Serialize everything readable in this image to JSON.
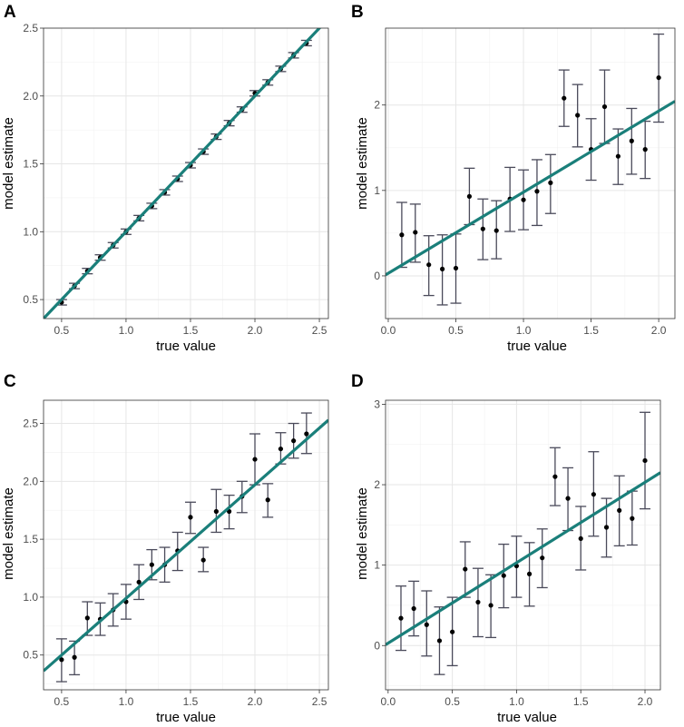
{
  "colors": {
    "fit_line": "#1a7f7a",
    "error_bar": "#4a4a5a",
    "point": "#000000"
  },
  "chart_data": [
    {
      "type": "scatter",
      "panel": "A",
      "xlabel": "true value",
      "ylabel": "model estimate",
      "xlim": [
        0.36,
        2.57
      ],
      "ylim": [
        0.36,
        2.5
      ],
      "xticks": [
        0.5,
        1.0,
        1.5,
        2.0,
        2.5
      ],
      "xtick_labels": [
        "0.5",
        "1.0",
        "1.5",
        "2.0",
        "2.5"
      ],
      "yticks": [
        0.5,
        1.0,
        1.5,
        2.0,
        2.5
      ],
      "ytick_labels": [
        "0.5",
        "1.0",
        "1.5",
        "2.0",
        "2.5"
      ],
      "fit_line": {
        "intercept": 0.0,
        "slope": 1.0
      },
      "points": [
        {
          "x": 0.5,
          "y": 0.48,
          "lo": 0.46,
          "hi": 0.5
        },
        {
          "x": 0.6,
          "y": 0.6,
          "lo": 0.58,
          "hi": 0.62
        },
        {
          "x": 0.7,
          "y": 0.71,
          "lo": 0.69,
          "hi": 0.73
        },
        {
          "x": 0.8,
          "y": 0.81,
          "lo": 0.79,
          "hi": 0.83
        },
        {
          "x": 0.9,
          "y": 0.9,
          "lo": 0.88,
          "hi": 0.92
        },
        {
          "x": 1.0,
          "y": 1.0,
          "lo": 0.98,
          "hi": 1.02
        },
        {
          "x": 1.1,
          "y": 1.1,
          "lo": 1.08,
          "hi": 1.12
        },
        {
          "x": 1.2,
          "y": 1.19,
          "lo": 1.17,
          "hi": 1.21
        },
        {
          "x": 1.3,
          "y": 1.29,
          "lo": 1.27,
          "hi": 1.31
        },
        {
          "x": 1.4,
          "y": 1.39,
          "lo": 1.37,
          "hi": 1.41
        },
        {
          "x": 1.5,
          "y": 1.49,
          "lo": 1.47,
          "hi": 1.51
        },
        {
          "x": 1.6,
          "y": 1.59,
          "lo": 1.57,
          "hi": 1.61
        },
        {
          "x": 1.7,
          "y": 1.7,
          "lo": 1.68,
          "hi": 1.72
        },
        {
          "x": 1.8,
          "y": 1.8,
          "lo": 1.78,
          "hi": 1.82
        },
        {
          "x": 1.9,
          "y": 1.9,
          "lo": 1.88,
          "hi": 1.92
        },
        {
          "x": 2.0,
          "y": 2.02,
          "lo": 2.0,
          "hi": 2.04
        },
        {
          "x": 2.1,
          "y": 2.1,
          "lo": 2.08,
          "hi": 2.12
        },
        {
          "x": 2.2,
          "y": 2.2,
          "lo": 2.18,
          "hi": 2.22
        },
        {
          "x": 2.3,
          "y": 2.3,
          "lo": 2.28,
          "hi": 2.32
        },
        {
          "x": 2.4,
          "y": 2.39,
          "lo": 2.37,
          "hi": 2.41
        }
      ]
    },
    {
      "type": "scatter",
      "panel": "B",
      "xlabel": "true value",
      "ylabel": "model estimate",
      "xlim": [
        -0.02,
        2.12
      ],
      "ylim": [
        -0.5,
        2.9
      ],
      "xticks": [
        0.0,
        0.5,
        1.0,
        1.5,
        2.0
      ],
      "xtick_labels": [
        "0.0",
        "0.5",
        "1.0",
        "1.5",
        "2.0"
      ],
      "yticks": [
        0,
        1,
        2
      ],
      "ytick_labels": [
        "0",
        "1",
        "2"
      ],
      "fit_line": {
        "intercept": 0.03,
        "slope": 0.95
      },
      "points": [
        {
          "x": 0.1,
          "y": 0.48,
          "lo": 0.1,
          "hi": 0.86
        },
        {
          "x": 0.2,
          "y": 0.51,
          "lo": 0.16,
          "hi": 0.84
        },
        {
          "x": 0.3,
          "y": 0.13,
          "lo": -0.23,
          "hi": 0.47
        },
        {
          "x": 0.4,
          "y": 0.08,
          "lo": -0.34,
          "hi": 0.48
        },
        {
          "x": 0.5,
          "y": 0.09,
          "lo": -0.32,
          "hi": 0.49
        },
        {
          "x": 0.6,
          "y": 0.93,
          "lo": 0.6,
          "hi": 1.26
        },
        {
          "x": 0.7,
          "y": 0.55,
          "lo": 0.19,
          "hi": 0.9
        },
        {
          "x": 0.8,
          "y": 0.53,
          "lo": 0.2,
          "hi": 0.88
        },
        {
          "x": 0.9,
          "y": 0.9,
          "lo": 0.52,
          "hi": 1.27
        },
        {
          "x": 1.0,
          "y": 0.89,
          "lo": 0.54,
          "hi": 1.24
        },
        {
          "x": 1.1,
          "y": 0.99,
          "lo": 0.59,
          "hi": 1.36
        },
        {
          "x": 1.2,
          "y": 1.09,
          "lo": 0.73,
          "hi": 1.42
        },
        {
          "x": 1.3,
          "y": 2.08,
          "lo": 1.75,
          "hi": 2.41
        },
        {
          "x": 1.4,
          "y": 1.88,
          "lo": 1.51,
          "hi": 2.24
        },
        {
          "x": 1.5,
          "y": 1.48,
          "lo": 1.12,
          "hi": 1.84
        },
        {
          "x": 1.6,
          "y": 1.98,
          "lo": 1.55,
          "hi": 2.41
        },
        {
          "x": 1.7,
          "y": 1.4,
          "lo": 1.07,
          "hi": 1.72
        },
        {
          "x": 1.8,
          "y": 1.58,
          "lo": 1.19,
          "hi": 1.96
        },
        {
          "x": 1.9,
          "y": 1.48,
          "lo": 1.14,
          "hi": 1.81
        },
        {
          "x": 2.0,
          "y": 2.32,
          "lo": 1.8,
          "hi": 2.83
        }
      ]
    },
    {
      "type": "scatter",
      "panel": "C",
      "xlabel": "true value",
      "ylabel": "model estimate",
      "xlim": [
        0.36,
        2.57
      ],
      "ylim": [
        0.2,
        2.7
      ],
      "xticks": [
        0.5,
        1.0,
        1.5,
        2.0,
        2.5
      ],
      "xtick_labels": [
        "0.5",
        "1.0",
        "1.5",
        "2.0",
        "2.5"
      ],
      "yticks": [
        0.5,
        1.0,
        1.5,
        2.0,
        2.5
      ],
      "ytick_labels": [
        "0.5",
        "1.0",
        "1.5",
        "2.0",
        "2.5"
      ],
      "fit_line": {
        "intercept": 0.01,
        "slope": 0.98
      },
      "points": [
        {
          "x": 0.5,
          "y": 0.46,
          "lo": 0.27,
          "hi": 0.64
        },
        {
          "x": 0.6,
          "y": 0.48,
          "lo": 0.33,
          "hi": 0.62
        },
        {
          "x": 0.7,
          "y": 0.82,
          "lo": 0.67,
          "hi": 0.96
        },
        {
          "x": 0.8,
          "y": 0.81,
          "lo": 0.67,
          "hi": 0.95
        },
        {
          "x": 0.9,
          "y": 0.89,
          "lo": 0.75,
          "hi": 1.03
        },
        {
          "x": 1.0,
          "y": 0.96,
          "lo": 0.81,
          "hi": 1.11
        },
        {
          "x": 1.1,
          "y": 1.13,
          "lo": 0.98,
          "hi": 1.28
        },
        {
          "x": 1.2,
          "y": 1.28,
          "lo": 1.15,
          "hi": 1.41
        },
        {
          "x": 1.3,
          "y": 1.28,
          "lo": 1.13,
          "hi": 1.43
        },
        {
          "x": 1.4,
          "y": 1.4,
          "lo": 1.23,
          "hi": 1.56
        },
        {
          "x": 1.5,
          "y": 1.69,
          "lo": 1.55,
          "hi": 1.82
        },
        {
          "x": 1.6,
          "y": 1.32,
          "lo": 1.22,
          "hi": 1.43
        },
        {
          "x": 1.7,
          "y": 1.74,
          "lo": 1.56,
          "hi": 1.93
        },
        {
          "x": 1.8,
          "y": 1.74,
          "lo": 1.59,
          "hi": 1.88
        },
        {
          "x": 1.9,
          "y": 1.87,
          "lo": 1.73,
          "hi": 2.0
        },
        {
          "x": 2.0,
          "y": 2.19,
          "lo": 1.97,
          "hi": 2.41
        },
        {
          "x": 2.1,
          "y": 1.84,
          "lo": 1.69,
          "hi": 1.98
        },
        {
          "x": 2.2,
          "y": 2.28,
          "lo": 2.15,
          "hi": 2.42
        },
        {
          "x": 2.3,
          "y": 2.35,
          "lo": 2.2,
          "hi": 2.5
        },
        {
          "x": 2.4,
          "y": 2.41,
          "lo": 2.24,
          "hi": 2.59
        }
      ]
    },
    {
      "type": "scatter",
      "panel": "D",
      "xlabel": "true value",
      "ylabel": "model estimate",
      "xlim": [
        -0.02,
        2.12
      ],
      "ylim": [
        -0.55,
        3.05
      ],
      "xticks": [
        0.0,
        0.5,
        1.0,
        1.5,
        2.0
      ],
      "xtick_labels": [
        "0.0",
        "0.5",
        "1.0",
        "1.5",
        "2.0"
      ],
      "yticks": [
        0,
        1,
        2,
        3
      ],
      "ytick_labels": [
        "0",
        "1",
        "2",
        "3"
      ],
      "fit_line": {
        "intercept": 0.03,
        "slope": 1.0
      },
      "points": [
        {
          "x": 0.1,
          "y": 0.34,
          "lo": -0.06,
          "hi": 0.74
        },
        {
          "x": 0.2,
          "y": 0.46,
          "lo": 0.12,
          "hi": 0.8
        },
        {
          "x": 0.3,
          "y": 0.26,
          "lo": -0.13,
          "hi": 0.68
        },
        {
          "x": 0.4,
          "y": 0.06,
          "lo": -0.36,
          "hi": 0.48
        },
        {
          "x": 0.5,
          "y": 0.17,
          "lo": -0.25,
          "hi": 0.6
        },
        {
          "x": 0.6,
          "y": 0.95,
          "lo": 0.6,
          "hi": 1.29
        },
        {
          "x": 0.7,
          "y": 0.54,
          "lo": 0.11,
          "hi": 0.96
        },
        {
          "x": 0.8,
          "y": 0.5,
          "lo": 0.1,
          "hi": 0.88
        },
        {
          "x": 0.9,
          "y": 0.87,
          "lo": 0.47,
          "hi": 1.26
        },
        {
          "x": 1.0,
          "y": 0.99,
          "lo": 0.6,
          "hi": 1.36
        },
        {
          "x": 1.1,
          "y": 0.89,
          "lo": 0.49,
          "hi": 1.28
        },
        {
          "x": 1.2,
          "y": 1.09,
          "lo": 0.72,
          "hi": 1.45
        },
        {
          "x": 1.3,
          "y": 2.1,
          "lo": 1.74,
          "hi": 2.46
        },
        {
          "x": 1.4,
          "y": 1.83,
          "lo": 1.43,
          "hi": 2.21
        },
        {
          "x": 1.5,
          "y": 1.33,
          "lo": 0.94,
          "hi": 1.73
        },
        {
          "x": 1.6,
          "y": 1.88,
          "lo": 1.36,
          "hi": 2.41
        },
        {
          "x": 1.7,
          "y": 1.47,
          "lo": 1.1,
          "hi": 1.83
        },
        {
          "x": 1.8,
          "y": 1.68,
          "lo": 1.24,
          "hi": 2.11
        },
        {
          "x": 1.9,
          "y": 1.58,
          "lo": 1.25,
          "hi": 1.92
        },
        {
          "x": 2.0,
          "y": 2.3,
          "lo": 1.7,
          "hi": 2.9
        }
      ]
    }
  ]
}
